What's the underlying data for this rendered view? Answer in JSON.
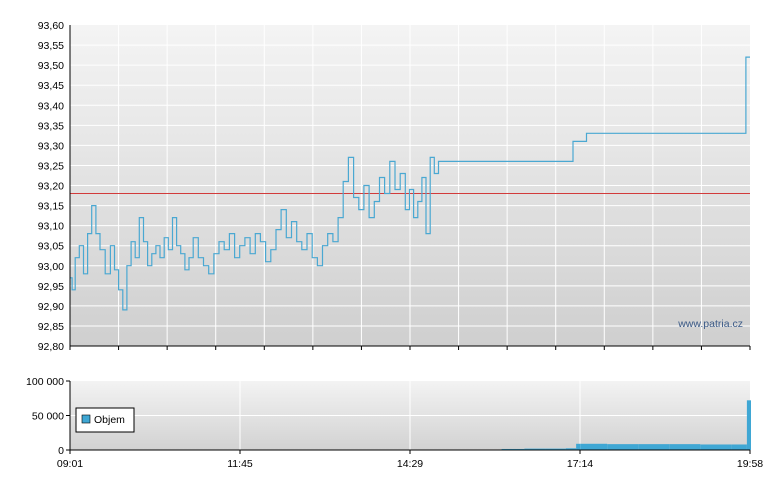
{
  "watermark": "www.patria.cz",
  "colors": {
    "price_line": "#4aa8d2",
    "reference_line": "#d23b3b",
    "volume_bar": "#3fa7d4",
    "axis": "#000000"
  },
  "chart_data": [
    {
      "type": "line",
      "title": "",
      "xlabel": "",
      "ylabel": "",
      "ylim": [
        92.8,
        93.6
      ],
      "y_ticks": [
        "93,60",
        "93,55",
        "93,50",
        "93,45",
        "93,40",
        "93,35",
        "93,30",
        "93,25",
        "93,20",
        "93,15",
        "93,10",
        "93,05",
        "93,00",
        "92,95",
        "92,90",
        "92,85",
        "92,80"
      ],
      "reference_value": 93.18,
      "grid": true,
      "series": [
        {
          "x": [
            "09:01",
            "09:03",
            "09:06",
            "09:10",
            "09:14",
            "09:18",
            "09:22",
            "09:26",
            "09:30",
            "09:35",
            "09:40",
            "09:44",
            "09:48",
            "09:52",
            "09:56",
            "10:00",
            "10:04",
            "10:08",
            "10:12",
            "10:16",
            "10:20",
            "10:24",
            "10:28",
            "10:32",
            "10:36",
            "10:40",
            "10:44",
            "10:48",
            "10:52",
            "10:56",
            "11:00",
            "11:05",
            "11:10",
            "11:15",
            "11:20",
            "11:25",
            "11:30",
            "11:35",
            "11:40",
            "11:45",
            "11:50",
            "11:55",
            "12:00",
            "12:05",
            "12:10",
            "12:15",
            "12:20",
            "12:25",
            "12:30",
            "12:35",
            "12:40",
            "12:45",
            "12:50",
            "12:55",
            "13:00",
            "13:05",
            "13:10",
            "13:15",
            "13:20",
            "13:25",
            "13:30",
            "13:35",
            "13:40",
            "13:45",
            "13:50",
            "13:55",
            "14:00",
            "14:05",
            "14:10",
            "14:15",
            "14:20",
            "14:25",
            "14:29",
            "14:33",
            "14:37",
            "14:41",
            "14:45",
            "14:49",
            "14:53",
            "14:57",
            "15:01",
            "15:05",
            "15:09",
            "15:13",
            "15:17",
            "15:21",
            "15:25",
            "15:29",
            "15:33",
            "15:37",
            "15:41",
            "15:45",
            "15:49",
            "15:53",
            "15:57",
            "16:01",
            "16:05",
            "16:10",
            "16:20",
            "16:35",
            "16:50",
            "17:05",
            "17:07",
            "17:09",
            "17:20",
            "17:40",
            "18:00",
            "18:20",
            "18:40",
            "19:00",
            "19:20",
            "19:40",
            "19:53",
            "19:54",
            "19:55",
            "19:58"
          ],
          "values": [
            92.97,
            92.94,
            93.02,
            93.05,
            92.98,
            93.08,
            93.15,
            93.08,
            93.04,
            92.98,
            93.05,
            92.99,
            92.94,
            92.89,
            93.0,
            93.06,
            93.02,
            93.12,
            93.06,
            93.0,
            93.03,
            93.05,
            93.02,
            93.07,
            93.04,
            93.12,
            93.05,
            93.03,
            92.99,
            93.02,
            93.07,
            93.02,
            93.0,
            92.98,
            93.03,
            93.06,
            93.04,
            93.08,
            93.02,
            93.05,
            93.07,
            93.03,
            93.08,
            93.06,
            93.01,
            93.04,
            93.09,
            93.14,
            93.07,
            93.11,
            93.06,
            93.04,
            93.08,
            93.02,
            93.0,
            93.05,
            93.08,
            93.06,
            93.12,
            93.21,
            93.27,
            93.17,
            93.14,
            93.2,
            93.12,
            93.16,
            93.22,
            93.18,
            93.26,
            93.19,
            93.23,
            93.14,
            93.19,
            93.12,
            93.16,
            93.22,
            93.08,
            93.27,
            93.23,
            93.26,
            93.26,
            93.26,
            93.26,
            93.26,
            93.26,
            93.26,
            93.26,
            93.26,
            93.26,
            93.26,
            93.26,
            93.26,
            93.26,
            93.26,
            93.26,
            93.26,
            93.26,
            93.26,
            93.26,
            93.26,
            93.26,
            93.26,
            93.31,
            93.31,
            93.33,
            93.33,
            93.33,
            93.33,
            93.33,
            93.33,
            93.33,
            93.33,
            93.33,
            93.52,
            93.52,
            93.52
          ]
        }
      ]
    },
    {
      "type": "bar",
      "title": "",
      "xlabel": "",
      "ylabel": "",
      "ylim": [
        0,
        100000
      ],
      "y_ticks": [
        "100 000",
        "50 000",
        "0"
      ],
      "x_ticks": [
        "09:01",
        "11:45",
        "14:29",
        "17:14",
        "19:58"
      ],
      "legend": "Objem",
      "legend_position": "left",
      "series": [
        {
          "name": "Objem",
          "x": [
            "15:58",
            "16:20",
            "16:40",
            "17:00",
            "17:10",
            "17:14",
            "17:40",
            "18:10",
            "18:40",
            "19:10",
            "19:40",
            "19:55",
            "19:58"
          ],
          "values": [
            1500,
            2000,
            2000,
            2500,
            9000,
            9000,
            8500,
            8500,
            8500,
            8000,
            8000,
            72000,
            72000
          ]
        }
      ]
    }
  ]
}
